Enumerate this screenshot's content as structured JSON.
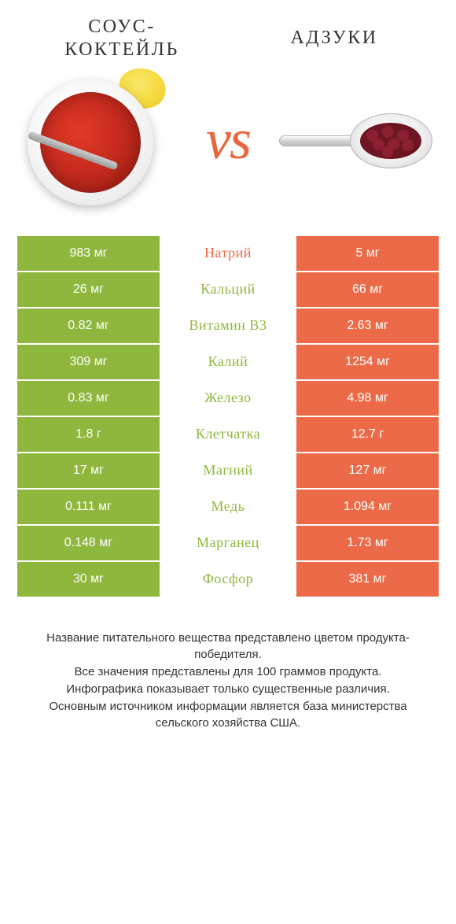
{
  "header": {
    "left_title": "Соус-\nкоктейль",
    "right_title": "Адзуки",
    "vs_label": "vs"
  },
  "colors": {
    "left_bg": "#8fb73e",
    "right_bg": "#ec6a47",
    "mid_green": "#8fb73e",
    "mid_orange": "#ec6a47"
  },
  "orange_rows": [
    0
  ],
  "rows": [
    {
      "left": "983 мг",
      "nutrient": "Натрий",
      "right": "5 мг"
    },
    {
      "left": "26 мг",
      "nutrient": "Кальций",
      "right": "66 мг"
    },
    {
      "left": "0.82 мг",
      "nutrient": "Витамин B3",
      "right": "2.63 мг"
    },
    {
      "left": "309 мг",
      "nutrient": "Калий",
      "right": "1254 мг"
    },
    {
      "left": "0.83 мг",
      "nutrient": "Железо",
      "right": "4.98 мг"
    },
    {
      "left": "1.8 г",
      "nutrient": "Клетчатка",
      "right": "12.7 г"
    },
    {
      "left": "17 мг",
      "nutrient": "Магний",
      "right": "127 мг"
    },
    {
      "left": "0.111 мг",
      "nutrient": "Медь",
      "right": "1.094 мг"
    },
    {
      "left": "0.148 мг",
      "nutrient": "Марганец",
      "right": "1.73 мг"
    },
    {
      "left": "30 мг",
      "nutrient": "Фосфор",
      "right": "381 мг"
    }
  ],
  "footnotes": [
    "Название питательного вещества представлено цветом продукта-победителя.",
    "Все значения представлены для 100 граммов продукта.",
    "Инфографика показывает только существенные различия.",
    "Основным источником информации является база министерства сельского хозяйства США."
  ]
}
